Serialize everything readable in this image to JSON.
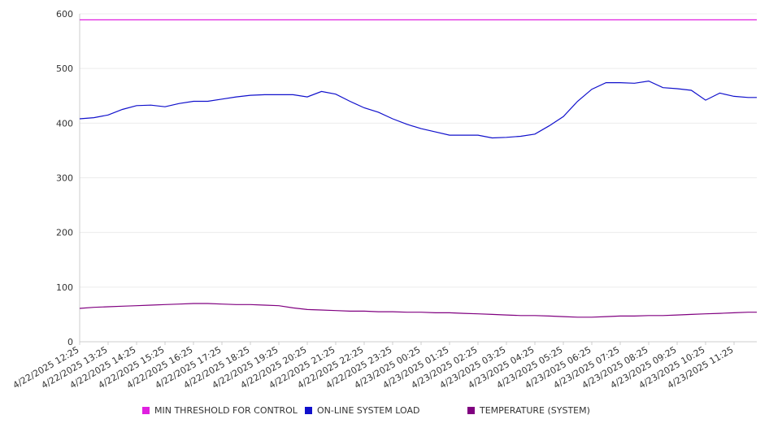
{
  "chart_data": {
    "type": "line",
    "ylim": [
      0,
      600
    ],
    "y_ticks": [
      0,
      100,
      200,
      300,
      400,
      500,
      600
    ],
    "x_tick_labels": [
      "4/22/2025 12:25",
      "4/22/2025 13:25",
      "4/22/2025 14:25",
      "4/22/2025 15:25",
      "4/22/2025 16:25",
      "4/22/2025 17:25",
      "4/22/2025 18:25",
      "4/22/2025 19:25",
      "4/22/2025 20:25",
      "4/22/2025 21:25",
      "4/22/2025 22:25",
      "4/22/2025 23:25",
      "4/23/2025 00:25",
      "4/23/2025 01:25",
      "4/23/2025 02:25",
      "4/23/2025 03:25",
      "4/23/2025 04:25",
      "4/23/2025 05:25",
      "4/23/2025 06:25",
      "4/23/2025 07:25",
      "4/23/2025 08:25",
      "4/23/2025 09:25",
      "4/23/2025 10:25",
      "4/23/2025 11:25"
    ],
    "x_time": [
      "4/22/2025 12:25",
      "4/22/2025 12:55",
      "4/22/2025 13:25",
      "4/22/2025 13:55",
      "4/22/2025 14:25",
      "4/22/2025 14:55",
      "4/22/2025 15:25",
      "4/22/2025 15:55",
      "4/22/2025 16:25",
      "4/22/2025 16:55",
      "4/22/2025 17:25",
      "4/22/2025 17:55",
      "4/22/2025 18:25",
      "4/22/2025 18:55",
      "4/22/2025 19:25",
      "4/22/2025 19:55",
      "4/22/2025 20:25",
      "4/22/2025 20:55",
      "4/22/2025 21:25",
      "4/22/2025 21:55",
      "4/22/2025 22:25",
      "4/22/2025 22:55",
      "4/22/2025 23:25",
      "4/22/2025 23:55",
      "4/23/2025 00:25",
      "4/23/2025 00:55",
      "4/23/2025 01:25",
      "4/23/2025 01:55",
      "4/23/2025 02:25",
      "4/23/2025 02:55",
      "4/23/2025 03:25",
      "4/23/2025 03:55",
      "4/23/2025 04:25",
      "4/23/2025 04:55",
      "4/23/2025 05:25",
      "4/23/2025 05:55",
      "4/23/2025 06:25",
      "4/23/2025 06:55",
      "4/23/2025 07:25",
      "4/23/2025 07:55",
      "4/23/2025 08:25",
      "4/23/2025 08:55",
      "4/23/2025 09:25",
      "4/23/2025 09:55",
      "4/23/2025 10:25",
      "4/23/2025 10:55",
      "4/23/2025 11:25",
      "4/23/2025 11:55"
    ],
    "series": [
      {
        "name": "MIN THRESHOLD FOR CONTROL",
        "color": "#e020e0",
        "values": [
          589,
          589,
          589,
          589,
          589,
          589,
          589,
          589,
          589,
          589,
          589,
          589,
          589,
          589,
          589,
          589,
          589,
          589,
          589,
          589,
          589,
          589,
          589,
          589,
          589,
          589,
          589,
          589,
          589,
          589,
          589,
          589,
          589,
          589,
          589,
          589,
          589,
          589,
          589,
          589,
          589,
          589,
          589,
          589,
          589,
          589,
          589,
          589
        ]
      },
      {
        "name": "ON-LINE SYSTEM LOAD",
        "color": "#1010cc",
        "values": [
          408,
          410,
          415,
          425,
          432,
          433,
          430,
          436,
          440,
          440,
          444,
          448,
          451,
          452,
          452,
          452,
          448,
          458,
          453,
          440,
          428,
          420,
          408,
          398,
          390,
          384,
          378,
          378,
          378,
          373,
          374,
          376,
          380,
          395,
          412,
          440,
          462,
          474,
          474,
          473,
          477,
          465,
          463,
          460,
          442,
          455,
          449,
          447
        ]
      },
      {
        "name": "TEMPERATURE (SYSTEM)",
        "color": "#800080",
        "values": [
          61,
          63,
          64,
          65,
          66,
          67,
          68,
          69,
          70,
          70,
          69,
          68,
          68,
          67,
          66,
          62,
          59,
          58,
          57,
          56,
          56,
          55,
          55,
          54,
          54,
          53,
          53,
          52,
          51,
          50,
          49,
          48,
          48,
          47,
          46,
          45,
          45,
          46,
          47,
          47,
          48,
          48,
          49,
          50,
          51,
          52,
          53,
          54
        ]
      }
    ],
    "legend_position": "bottom",
    "grid": true
  }
}
